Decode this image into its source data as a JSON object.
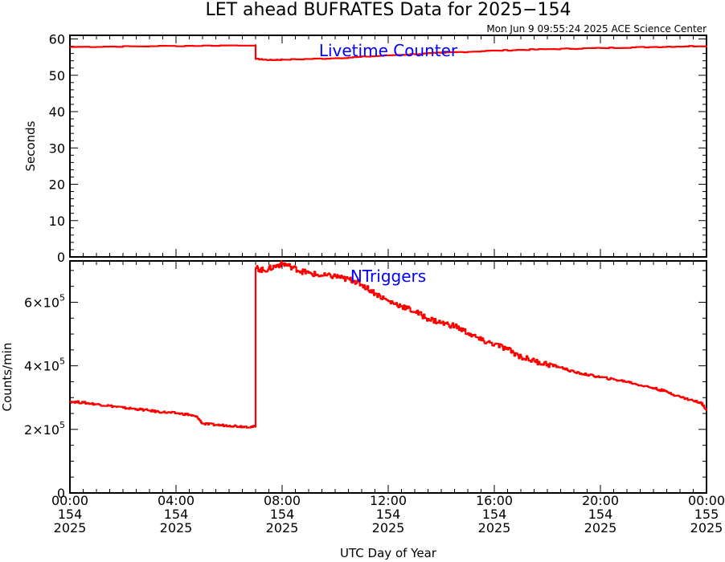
{
  "title": "LET ahead BUFRATES Data for 2025−154",
  "subtitle": "Mon Jun  9 09:55:24 2025 ACE Science Center",
  "xlabel": "UTC Day of Year",
  "x_ticks": [
    {
      "time": "00:00",
      "doy": "154",
      "year": "2025",
      "hour": 0
    },
    {
      "time": "04:00",
      "doy": "154",
      "year": "2025",
      "hour": 4
    },
    {
      "time": "08:00",
      "doy": "154",
      "year": "2025",
      "hour": 8
    },
    {
      "time": "12:00",
      "doy": "154",
      "year": "2025",
      "hour": 12
    },
    {
      "time": "16:00",
      "doy": "154",
      "year": "2025",
      "hour": 16
    },
    {
      "time": "20:00",
      "doy": "154",
      "year": "2025",
      "hour": 20
    },
    {
      "time": "00:00",
      "doy": "155",
      "year": "2025",
      "hour": 24
    }
  ],
  "colors": {
    "series": "#ff0000",
    "label": "#0000ff",
    "axes": "#000000"
  },
  "chart_data": [
    {
      "type": "line",
      "series_label": "Livetime Counter",
      "ylabel": "Seconds",
      "xlim": [
        0,
        24
      ],
      "ylim": [
        0,
        61
      ],
      "y_ticks": [
        0,
        10,
        20,
        30,
        40,
        50,
        60
      ],
      "y_tick_labels": [
        "0",
        "10",
        "20",
        "30",
        "40",
        "50",
        "60"
      ],
      "series": [
        {
          "x": [
            0.0,
            3.0,
            6.99,
            7.0,
            7.5,
            8.0,
            10.0,
            12.0,
            14.0,
            16.0,
            18.0,
            20.0,
            22.0,
            24.0
          ],
          "values": [
            57.8,
            58.0,
            58.3,
            54.5,
            54.2,
            54.3,
            54.7,
            55.5,
            56.2,
            56.8,
            57.2,
            57.5,
            57.8,
            58.1
          ]
        }
      ]
    },
    {
      "type": "line",
      "series_label": "NTriggers",
      "ylabel": "Counts/min",
      "xlim": [
        0,
        24
      ],
      "ylim": [
        0,
        730000
      ],
      "y_ticks": [
        0,
        200000,
        400000,
        600000
      ],
      "y_tick_labels": [
        {
          "mant": "0",
          "exp": ""
        },
        {
          "mant": "2×10",
          "exp": "5"
        },
        {
          "mant": "4×10",
          "exp": "5"
        },
        {
          "mant": "6×10",
          "exp": "5"
        }
      ],
      "series": [
        {
          "x": [
            0.0,
            0.5,
            1.0,
            1.5,
            2.0,
            2.5,
            3.0,
            3.5,
            4.0,
            4.5,
            4.8,
            5.0,
            5.5,
            6.0,
            6.5,
            6.99,
            7.0,
            7.3,
            7.7,
            8.0,
            8.3,
            8.7,
            9.0,
            9.5,
            10.0,
            10.3,
            10.7,
            11.0,
            11.5,
            12.0,
            12.5,
            13.0,
            13.5,
            14.0,
            14.5,
            15.0,
            15.5,
            16.0,
            16.5,
            17.0,
            17.5,
            18.0,
            18.5,
            19.0,
            19.5,
            20.0,
            20.5,
            21.0,
            21.5,
            22.0,
            22.5,
            23.0,
            23.5,
            23.8,
            24.0
          ],
          "values": [
            288000,
            284000,
            279000,
            274000,
            268000,
            264000,
            259000,
            254000,
            251000,
            246000,
            238000,
            218000,
            214000,
            212000,
            209000,
            208000,
            708000,
            700000,
            712000,
            722000,
            713000,
            698000,
            692000,
            683000,
            682000,
            675000,
            668000,
            655000,
            628000,
            603000,
            588000,
            570000,
            548000,
            535000,
            525000,
            503000,
            480000,
            468000,
            451000,
            428000,
            415000,
            405000,
            395000,
            380000,
            372000,
            364000,
            357000,
            350000,
            339000,
            330000,
            318000,
            302000,
            290000,
            283000,
            262000
          ]
        }
      ]
    }
  ]
}
